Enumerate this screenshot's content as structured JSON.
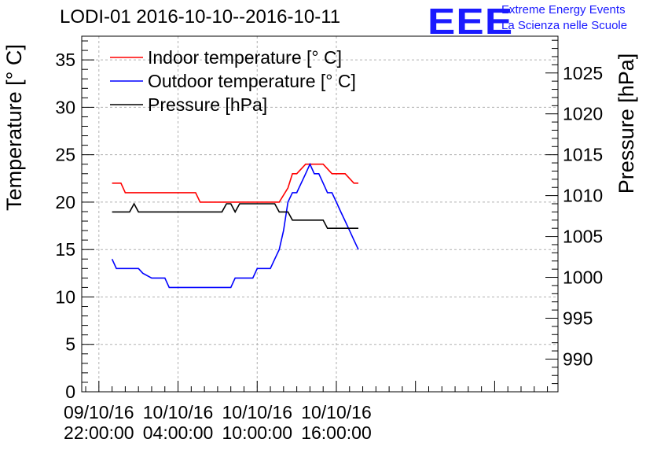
{
  "header": {
    "title": "LODI-01 2016-10-10--2016-10-11",
    "logo": "EEE",
    "logo_line1": "Extreme Energy Events",
    "logo_line2": "La Scienza nelle Scuole"
  },
  "chart_data": {
    "type": "line",
    "title": "LODI-01 2016-10-10--2016-10-11",
    "xlabel": "",
    "ylabel": "Temperature [° C]",
    "ylabel_right": "Pressure [hPa]",
    "xlim": [
      -1.3,
      34.8
    ],
    "ylim": [
      0,
      37.5
    ],
    "ylim_right": [
      986,
      1029.5
    ],
    "y_ticks": [
      0,
      5,
      10,
      15,
      20,
      25,
      30,
      35
    ],
    "y_right_ticks": [
      990,
      995,
      1000,
      1005,
      1010,
      1015,
      1020,
      1025
    ],
    "x_ticks": [
      {
        "x": 0,
        "line1": "09/10/16",
        "line2": "22:00:00"
      },
      {
        "x": 6,
        "line1": "10/10/16",
        "line2": "04:00:00"
      },
      {
        "x": 12,
        "line1": "10/10/16",
        "line2": "10:00:00"
      },
      {
        "x": 18,
        "line1": "10/10/16",
        "line2": "16:00:00"
      }
    ],
    "grid": true,
    "legend_position": "top-left",
    "series": [
      {
        "name": "Indoor temperature [° C]",
        "color": "#ff0000",
        "axis": "left",
        "x": [
          1,
          1.67,
          2,
          5,
          7.33,
          7.67,
          9.5,
          10.5,
          11,
          13.67,
          14.33,
          14.67,
          15,
          15.67,
          16.33,
          17,
          17.67,
          18.33,
          18.67,
          19.33,
          19.67
        ],
        "y": [
          22,
          22,
          21,
          21,
          21,
          20,
          20,
          20,
          20,
          20,
          21.5,
          23,
          23,
          24,
          24,
          24,
          23,
          23,
          23,
          22,
          22
        ]
      },
      {
        "name": "Outdoor temperature [° C]",
        "color": "#0000ff",
        "axis": "left",
        "x": [
          1,
          1.33,
          3,
          3.33,
          4,
          4.33,
          5,
          5.33,
          8,
          8.5,
          10,
          10.33,
          11,
          11.67,
          12,
          13,
          13.33,
          13.67,
          14,
          14.33,
          14.67,
          15,
          15.67,
          16,
          16.33,
          16.67,
          17,
          17.33,
          17.67,
          18,
          18.33,
          18.67,
          19,
          19.33,
          19.67
        ],
        "y": [
          14,
          13,
          13,
          12.5,
          12,
          12,
          12,
          11,
          11,
          11,
          11,
          12,
          12,
          12,
          13,
          13,
          14,
          15,
          17,
          20,
          21,
          21,
          23,
          24,
          23,
          23,
          22,
          21,
          21,
          20,
          19,
          18,
          17,
          16,
          15
        ]
      },
      {
        "name": "Pressure [hPa]",
        "color": "#000000",
        "axis": "right",
        "x": [
          1,
          2.33,
          2.67,
          3,
          3.33,
          9.33,
          9.67,
          10,
          10.33,
          10.67,
          11,
          13.33,
          13.67,
          14.33,
          14.67,
          15,
          15.33,
          16,
          16.67,
          17,
          17.33,
          18,
          19.67
        ],
        "y": [
          1008,
          1008,
          1009,
          1008,
          1008,
          1008,
          1009,
          1009,
          1008,
          1009,
          1009,
          1009,
          1008,
          1008,
          1007,
          1007,
          1007,
          1007,
          1007,
          1007,
          1006,
          1006,
          1006
        ]
      }
    ]
  }
}
